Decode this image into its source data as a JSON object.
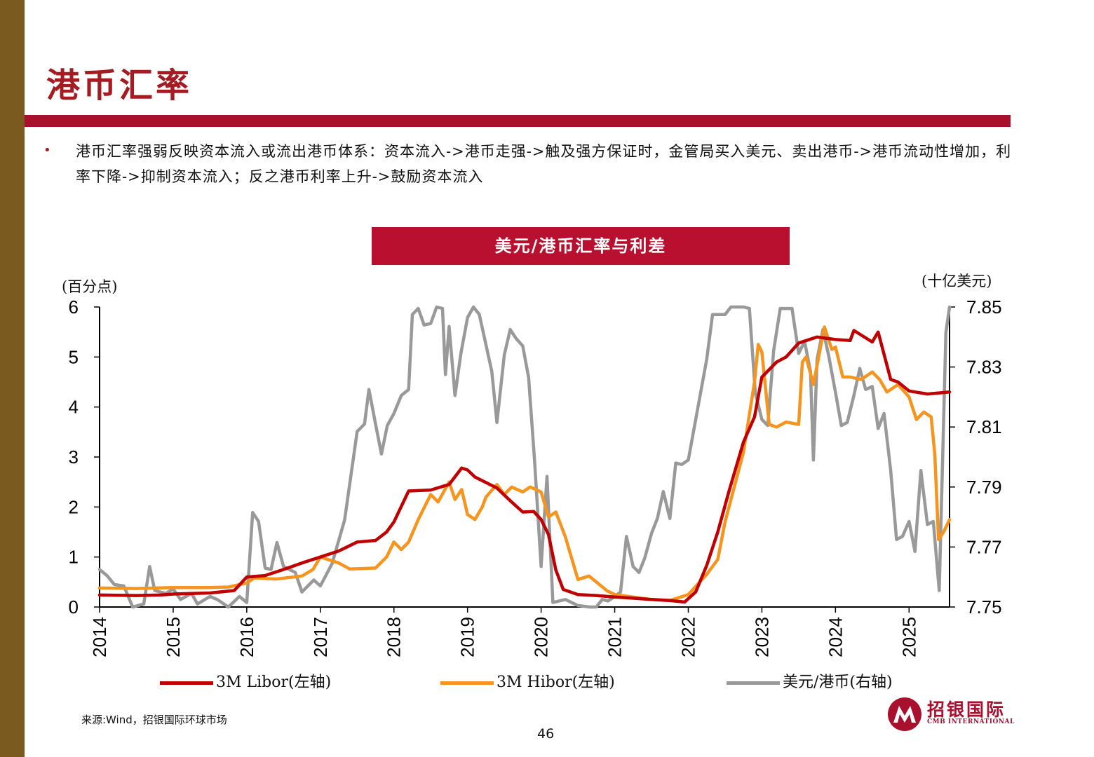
{
  "slide": {
    "title": "港币汇率",
    "bullet": "港币汇率强弱反映资本流入或流出港币体系：资本流入->港币走强->触及强方保证时，金管局买入美元、卖出港币->港币流动性增加，利率下降->抑制资本流入；反之港币利率上升->鼓励资本流入",
    "source": "来源:Wind，招银国际环球市场",
    "page_number": "46",
    "logo_text": "招银国际",
    "logo_sub": "CMB INTERNATIONAL"
  },
  "colors": {
    "accent": "#b8102e",
    "side_bar": "#7a5a1e",
    "libor": "#c00000",
    "hibor": "#f7941d",
    "usdhkd": "#999999"
  },
  "chart_data": {
    "type": "line",
    "title": "美元/港币汇率与利差",
    "y_left_unit": "(百分点)",
    "y_right_unit": "(十亿美元)",
    "x_ticks": [
      "2014",
      "2015",
      "2016",
      "2017",
      "2018",
      "2019",
      "2020",
      "2021",
      "2022",
      "2023",
      "2024",
      "2025"
    ],
    "x_range": [
      2014.0,
      2025.55
    ],
    "y_left_range": [
      0,
      6
    ],
    "y_left_ticks": [
      0,
      1,
      2,
      3,
      4,
      5,
      6
    ],
    "y_right_range": [
      7.75,
      7.85
    ],
    "y_right_ticks": [
      "7.75",
      "7.77",
      "7.79",
      "7.81",
      "7.83",
      "7.85"
    ],
    "legend": [
      "3M Libor(左轴)",
      "3M Hibor(左轴)",
      "美元/港币(右轴)"
    ],
    "series": [
      {
        "name": "3M Libor(左轴)",
        "axis": "left",
        "color": "#c00000",
        "points": [
          [
            2014.0,
            0.24
          ],
          [
            2014.5,
            0.23
          ],
          [
            2014.83,
            0.24
          ],
          [
            2015.0,
            0.26
          ],
          [
            2015.5,
            0.28
          ],
          [
            2015.83,
            0.33
          ],
          [
            2016.0,
            0.6
          ],
          [
            2016.25,
            0.63
          ],
          [
            2016.5,
            0.75
          ],
          [
            2016.75,
            0.88
          ],
          [
            2017.0,
            1.0
          ],
          [
            2017.25,
            1.12
          ],
          [
            2017.5,
            1.3
          ],
          [
            2017.75,
            1.33
          ],
          [
            2017.9,
            1.5
          ],
          [
            2018.0,
            1.7
          ],
          [
            2018.2,
            2.32
          ],
          [
            2018.5,
            2.34
          ],
          [
            2018.75,
            2.45
          ],
          [
            2018.92,
            2.78
          ],
          [
            2019.0,
            2.74
          ],
          [
            2019.1,
            2.6
          ],
          [
            2019.4,
            2.38
          ],
          [
            2019.6,
            2.1
          ],
          [
            2019.75,
            1.9
          ],
          [
            2019.9,
            1.91
          ],
          [
            2020.0,
            1.75
          ],
          [
            2020.1,
            1.45
          ],
          [
            2020.2,
            0.74
          ],
          [
            2020.3,
            0.35
          ],
          [
            2020.5,
            0.25
          ],
          [
            2020.75,
            0.23
          ],
          [
            2021.0,
            0.2
          ],
          [
            2021.5,
            0.15
          ],
          [
            2021.75,
            0.13
          ],
          [
            2021.95,
            0.1
          ],
          [
            2022.1,
            0.3
          ],
          [
            2022.25,
            0.83
          ],
          [
            2022.4,
            1.5
          ],
          [
            2022.55,
            2.3
          ],
          [
            2022.75,
            3.3
          ],
          [
            2022.9,
            3.8
          ],
          [
            2023.0,
            4.6
          ],
          [
            2023.2,
            4.9
          ],
          [
            2023.33,
            5.0
          ],
          [
            2023.5,
            5.28
          ],
          [
            2023.75,
            5.4
          ],
          [
            2024.0,
            5.35
          ],
          [
            2024.2,
            5.33
          ],
          [
            2024.25,
            5.53
          ],
          [
            2024.5,
            5.3
          ],
          [
            2024.58,
            5.5
          ],
          [
            2024.75,
            4.55
          ],
          [
            2024.85,
            4.5
          ],
          [
            2025.0,
            4.32
          ],
          [
            2025.25,
            4.26
          ],
          [
            2025.55,
            4.3
          ]
        ]
      },
      {
        "name": "3M Hibor(左轴)",
        "axis": "left",
        "color": "#f7941d",
        "points": [
          [
            2014.0,
            0.38
          ],
          [
            2014.5,
            0.37
          ],
          [
            2015.0,
            0.39
          ],
          [
            2015.5,
            0.39
          ],
          [
            2015.75,
            0.4
          ],
          [
            2016.0,
            0.48
          ],
          [
            2016.1,
            0.58
          ],
          [
            2016.4,
            0.56
          ],
          [
            2016.75,
            0.62
          ],
          [
            2016.9,
            0.75
          ],
          [
            2017.0,
            1.0
          ],
          [
            2017.25,
            0.88
          ],
          [
            2017.4,
            0.76
          ],
          [
            2017.75,
            0.78
          ],
          [
            2017.9,
            1.0
          ],
          [
            2018.0,
            1.3
          ],
          [
            2018.1,
            1.15
          ],
          [
            2018.2,
            1.3
          ],
          [
            2018.33,
            1.75
          ],
          [
            2018.5,
            2.25
          ],
          [
            2018.6,
            2.1
          ],
          [
            2018.75,
            2.5
          ],
          [
            2018.83,
            2.15
          ],
          [
            2018.92,
            2.35
          ],
          [
            2019.0,
            1.85
          ],
          [
            2019.1,
            1.75
          ],
          [
            2019.2,
            2.0
          ],
          [
            2019.25,
            2.2
          ],
          [
            2019.4,
            2.45
          ],
          [
            2019.5,
            2.25
          ],
          [
            2019.6,
            2.4
          ],
          [
            2019.75,
            2.3
          ],
          [
            2019.85,
            2.4
          ],
          [
            2020.0,
            2.3
          ],
          [
            2020.1,
            1.8
          ],
          [
            2020.2,
            1.9
          ],
          [
            2020.33,
            1.4
          ],
          [
            2020.5,
            0.55
          ],
          [
            2020.65,
            0.62
          ],
          [
            2020.75,
            0.5
          ],
          [
            2020.9,
            0.32
          ],
          [
            2021.0,
            0.25
          ],
          [
            2021.5,
            0.15
          ],
          [
            2021.75,
            0.13
          ],
          [
            2021.9,
            0.2
          ],
          [
            2022.0,
            0.25
          ],
          [
            2022.25,
            0.65
          ],
          [
            2022.4,
            0.95
          ],
          [
            2022.5,
            1.7
          ],
          [
            2022.75,
            3.1
          ],
          [
            2022.9,
            4.5
          ],
          [
            2022.95,
            5.25
          ],
          [
            2023.0,
            5.1
          ],
          [
            2023.1,
            3.65
          ],
          [
            2023.2,
            3.6
          ],
          [
            2023.33,
            3.7
          ],
          [
            2023.5,
            3.65
          ],
          [
            2023.55,
            4.9
          ],
          [
            2023.6,
            5.0
          ],
          [
            2023.7,
            4.45
          ],
          [
            2023.85,
            5.6
          ],
          [
            2023.95,
            5.15
          ],
          [
            2024.0,
            5.2
          ],
          [
            2024.1,
            4.6
          ],
          [
            2024.2,
            4.6
          ],
          [
            2024.35,
            4.55
          ],
          [
            2024.5,
            4.7
          ],
          [
            2024.6,
            4.55
          ],
          [
            2024.7,
            4.3
          ],
          [
            2024.85,
            4.45
          ],
          [
            2025.0,
            4.2
          ],
          [
            2025.1,
            3.75
          ],
          [
            2025.2,
            3.9
          ],
          [
            2025.3,
            3.8
          ],
          [
            2025.35,
            3.05
          ],
          [
            2025.4,
            1.35
          ],
          [
            2025.47,
            1.5
          ],
          [
            2025.55,
            1.75
          ]
        ]
      },
      {
        "name": "美元/港币(右轴)",
        "axis": "right",
        "color": "#999999",
        "points": [
          [
            2014.0,
            7.7625
          ],
          [
            2014.1,
            7.7605
          ],
          [
            2014.2,
            7.7575
          ],
          [
            2014.33,
            7.757
          ],
          [
            2014.45,
            7.75
          ],
          [
            2014.6,
            7.751
          ],
          [
            2014.68,
            7.7635
          ],
          [
            2014.75,
            7.7555
          ],
          [
            2014.9,
            7.7545
          ],
          [
            2015.0,
            7.756
          ],
          [
            2015.1,
            7.7525
          ],
          [
            2015.25,
            7.7545
          ],
          [
            2015.33,
            7.751
          ],
          [
            2015.5,
            7.7535
          ],
          [
            2015.6,
            7.7525
          ],
          [
            2015.75,
            7.75
          ],
          [
            2015.9,
            7.7535
          ],
          [
            2016.0,
            7.7515
          ],
          [
            2016.08,
            7.7815
          ],
          [
            2016.16,
            7.7785
          ],
          [
            2016.25,
            7.763
          ],
          [
            2016.33,
            7.7625
          ],
          [
            2016.41,
            7.7715
          ],
          [
            2016.5,
            7.7635
          ],
          [
            2016.66,
            7.7615
          ],
          [
            2016.75,
            7.755
          ],
          [
            2016.91,
            7.759
          ],
          [
            2017.0,
            7.757
          ],
          [
            2017.16,
            7.7645
          ],
          [
            2017.33,
            7.779
          ],
          [
            2017.5,
            7.8085
          ],
          [
            2017.6,
            7.811
          ],
          [
            2017.66,
            7.8225
          ],
          [
            2017.75,
            7.811
          ],
          [
            2017.83,
            7.801
          ],
          [
            2017.91,
            7.8105
          ],
          [
            2018.0,
            7.8145
          ],
          [
            2018.1,
            7.8205
          ],
          [
            2018.2,
            7.8225
          ],
          [
            2018.25,
            7.8475
          ],
          [
            2018.33,
            7.8495
          ],
          [
            2018.41,
            7.844
          ],
          [
            2018.5,
            7.8445
          ],
          [
            2018.58,
            7.85
          ],
          [
            2018.66,
            7.8495
          ],
          [
            2018.7,
            7.8275
          ],
          [
            2018.75,
            7.8435
          ],
          [
            2018.83,
            7.8205
          ],
          [
            2018.91,
            7.8345
          ],
          [
            2019.0,
            7.8465
          ],
          [
            2019.08,
            7.85
          ],
          [
            2019.16,
            7.8475
          ],
          [
            2019.33,
            7.8285
          ],
          [
            2019.4,
            7.8115
          ],
          [
            2019.5,
            7.834
          ],
          [
            2019.58,
            7.8425
          ],
          [
            2019.66,
            7.8395
          ],
          [
            2019.75,
            7.837
          ],
          [
            2019.83,
            7.8265
          ],
          [
            2019.91,
            7.799
          ],
          [
            2020.0,
            7.7635
          ],
          [
            2020.08,
            7.7935
          ],
          [
            2020.16,
            7.7515
          ],
          [
            2020.33,
            7.7525
          ],
          [
            2020.5,
            7.7505
          ],
          [
            2020.66,
            7.75
          ],
          [
            2020.75,
            7.75
          ],
          [
            2020.83,
            7.7525
          ],
          [
            2020.91,
            7.752
          ],
          [
            2021.0,
            7.7535
          ],
          [
            2021.08,
            7.755
          ],
          [
            2021.16,
            7.7735
          ],
          [
            2021.25,
            7.7635
          ],
          [
            2021.33,
            7.7615
          ],
          [
            2021.41,
            7.7665
          ],
          [
            2021.5,
            7.7745
          ],
          [
            2021.58,
            7.7795
          ],
          [
            2021.66,
            7.7885
          ],
          [
            2021.75,
            7.7795
          ],
          [
            2021.83,
            7.798
          ],
          [
            2021.91,
            7.7975
          ],
          [
            2022.0,
            7.799
          ],
          [
            2022.25,
            7.8325
          ],
          [
            2022.33,
            7.8475
          ],
          [
            2022.5,
            7.8475
          ],
          [
            2022.58,
            7.85
          ],
          [
            2022.75,
            7.85
          ],
          [
            2022.83,
            7.8495
          ],
          [
            2022.91,
            7.8215
          ],
          [
            2023.0,
            7.8125
          ],
          [
            2023.08,
            7.8105
          ],
          [
            2023.16,
            7.8355
          ],
          [
            2023.25,
            7.8495
          ],
          [
            2023.33,
            7.8495
          ],
          [
            2023.41,
            7.8495
          ],
          [
            2023.5,
            7.8345
          ],
          [
            2023.58,
            7.8385
          ],
          [
            2023.66,
            7.8285
          ],
          [
            2023.7,
            7.799
          ],
          [
            2023.75,
            7.8325
          ],
          [
            2023.83,
            7.8425
          ],
          [
            2023.91,
            7.8335
          ],
          [
            2024.0,
            7.8215
          ],
          [
            2024.08,
            7.8105
          ],
          [
            2024.16,
            7.8115
          ],
          [
            2024.25,
            7.8205
          ],
          [
            2024.33,
            7.8295
          ],
          [
            2024.41,
            7.8225
          ],
          [
            2024.5,
            7.8235
          ],
          [
            2024.58,
            7.8095
          ],
          [
            2024.66,
            7.8145
          ],
          [
            2024.75,
            7.7955
          ],
          [
            2024.83,
            7.7725
          ],
          [
            2024.91,
            7.7735
          ],
          [
            2025.0,
            7.7785
          ],
          [
            2025.08,
            7.7685
          ],
          [
            2025.16,
            7.7955
          ],
          [
            2025.25,
            7.7775
          ],
          [
            2025.33,
            7.7785
          ],
          [
            2025.41,
            7.7555
          ],
          [
            2025.5,
            7.8415
          ],
          [
            2025.55,
            7.85
          ]
        ]
      }
    ]
  }
}
